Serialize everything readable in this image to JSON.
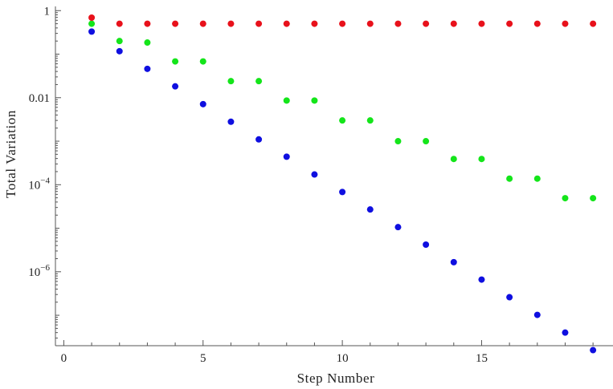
{
  "chart_data": {
    "type": "scatter",
    "title": "",
    "xlabel": "Step Number",
    "ylabel": "Total Variation",
    "xlim": [
      -0.3,
      19.4
    ],
    "ylim": [
      2e-08,
      1.25
    ],
    "yscale": "log",
    "grid": false,
    "legend": "none",
    "x_ticks": [
      {
        "value": 0,
        "label": "0"
      },
      {
        "value": 5,
        "label": "5"
      },
      {
        "value": 10,
        "label": "10"
      },
      {
        "value": 15,
        "label": "15"
      }
    ],
    "y_ticks": [
      {
        "value": 1,
        "base": "1",
        "exp": ""
      },
      {
        "value": 0.01,
        "base": "0.01",
        "exp": ""
      },
      {
        "value": 0.0001,
        "base": "10",
        "exp": "−4"
      },
      {
        "value": 1e-06,
        "base": "10",
        "exp": "−6"
      }
    ],
    "series": [
      {
        "color": "#e8111b",
        "x": [
          1,
          2,
          3,
          4,
          5,
          6,
          7,
          8,
          9,
          10,
          11,
          12,
          13,
          14,
          15,
          16,
          17,
          18,
          19
        ],
        "y": [
          0.69,
          0.5,
          0.5,
          0.5,
          0.5,
          0.5,
          0.5,
          0.5,
          0.5,
          0.5,
          0.5,
          0.5,
          0.5,
          0.5,
          0.5,
          0.5,
          0.5,
          0.5,
          0.5
        ]
      },
      {
        "color": "#14e51a",
        "x": [
          1,
          2,
          3,
          4,
          5,
          6,
          7,
          8,
          9,
          10,
          11,
          12,
          13,
          14,
          15,
          16,
          17,
          18,
          19
        ],
        "y": [
          0.5,
          0.2,
          0.185,
          0.068,
          0.068,
          0.024,
          0.024,
          0.0086,
          0.0086,
          0.003,
          0.003,
          0.001,
          0.001,
          0.00039,
          0.00039,
          0.000138,
          0.000138,
          4.9e-05,
          4.9e-05
        ]
      },
      {
        "color": "#0f0fe0",
        "x": [
          1,
          2,
          3,
          4,
          5,
          6,
          7,
          8,
          9,
          10,
          11,
          12,
          13,
          14,
          15,
          16,
          17,
          18,
          19
        ],
        "y": [
          0.33,
          0.117,
          0.046,
          0.0182,
          0.0071,
          0.0028,
          0.0011,
          0.00044,
          0.000172,
          6.8e-05,
          2.7e-05,
          1.06e-05,
          4.2e-06,
          1.66e-06,
          6.6e-07,
          2.6e-07,
          1.02e-07,
          4e-08,
          1.58e-08
        ]
      }
    ]
  }
}
